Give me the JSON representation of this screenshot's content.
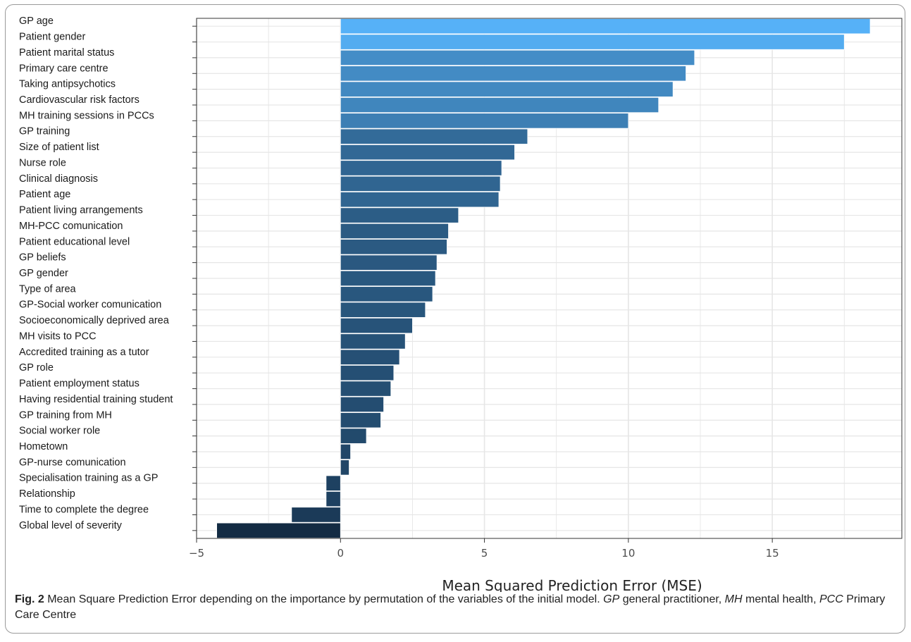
{
  "chart_data": {
    "type": "bar",
    "orientation": "horizontal",
    "xlabel": "Mean Squared Prediction Error (MSE)",
    "ylabel": "",
    "xlim": [
      -5,
      19.5
    ],
    "xticks": [
      -5,
      0,
      5,
      10,
      15
    ],
    "grid": true,
    "legend": "none",
    "categories": [
      "GP age",
      "Patient gender",
      "Patient marital status",
      "Primary care centre",
      "Taking antipsychotics",
      "Cardiovascular risk factors",
      "MH training sessions in PCCs",
      "GP training",
      "Size of patient list",
      "Nurse role",
      "Clinical diagnosis",
      "Patient age",
      "Patient living arrangements",
      "MH-PCC comunication",
      "Patient educational level",
      "GP beliefs",
      "GP gender",
      "Type of area",
      "GP-Social worker comunication",
      "Socioeconomically deprived area",
      "MH visits to PCC",
      "Accredited training as a tutor",
      "GP role",
      "Patient employment status",
      "Having residential training student",
      "GP training from MH",
      "Social worker role",
      "Hometown",
      "GP-nurse comunication",
      "Specialisation training as a GP",
      "Relationship",
      "Time to complete the degree",
      "Global level of severity"
    ],
    "values": [
      18.4,
      17.5,
      12.3,
      12.0,
      11.55,
      11.05,
      10.0,
      6.5,
      6.05,
      5.6,
      5.55,
      5.5,
      4.1,
      3.75,
      3.7,
      3.35,
      3.3,
      3.2,
      2.95,
      2.5,
      2.25,
      2.05,
      1.85,
      1.75,
      1.5,
      1.4,
      0.9,
      0.35,
      0.3,
      -0.5,
      -0.5,
      -1.7,
      -4.3
    ]
  },
  "colors": {
    "bar_light": "#56b1f7",
    "bar_dark": "#132b43",
    "grid": "#e6e6e6",
    "axis_text": "#4d4d4d",
    "label_text": "#1a1a1a"
  },
  "caption": {
    "fig_label": "Fig. 2",
    "text_1": "  Mean Square Prediction Error depending on the importance by permutation of the variables of the initial model. ",
    "abbr_gp": "GP",
    "text_2": " general practitioner, ",
    "abbr_mh": "MH",
    "text_3": " mental health, ",
    "abbr_pcc": "PCC",
    "text_4": " Primary Care Centre"
  }
}
